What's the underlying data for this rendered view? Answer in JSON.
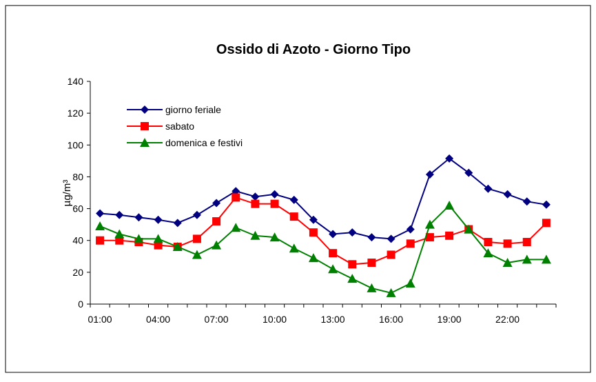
{
  "chart_data": {
    "type": "line",
    "title": "Ossido di Azoto -  Giorno Tipo",
    "y_label": "µg/m³",
    "categories": [
      "01:00",
      null,
      null,
      "04:00",
      null,
      null,
      "07:00",
      null,
      null,
      "10:00",
      null,
      null,
      "13:00",
      null,
      null,
      "16:00",
      null,
      null,
      "19:00",
      null,
      null,
      "22:00",
      null,
      null
    ],
    "series": [
      {
        "name": "giorno feriale",
        "color": "#000080",
        "marker": "diamond",
        "values": [
          57,
          56,
          54.5,
          53,
          51,
          56,
          63.5,
          71,
          67.5,
          69,
          65.5,
          53,
          44,
          45,
          42,
          41,
          47,
          81.5,
          91.5,
          82.5,
          72.5,
          69,
          64.5,
          62.5
        ]
      },
      {
        "name": "sabato",
        "color": "#ff0000",
        "marker": "square",
        "values": [
          40,
          40,
          39,
          37,
          36,
          41,
          52,
          67,
          63,
          63,
          55,
          45,
          32,
          25,
          26,
          31,
          38,
          42,
          43,
          47,
          39,
          38,
          39,
          51
        ]
      },
      {
        "name": "domenica e festivi",
        "color": "#008000",
        "marker": "triangle",
        "values": [
          49,
          44,
          41,
          41,
          36,
          31,
          37,
          48,
          43,
          42,
          35,
          29,
          22,
          16,
          10,
          7,
          13,
          50,
          62,
          47,
          32,
          26,
          28,
          28
        ]
      }
    ],
    "ylim": [
      0,
      140
    ],
    "yticks": [
      0,
      20,
      40,
      60,
      80,
      100,
      120,
      140
    ],
    "legend": "upper left"
  }
}
